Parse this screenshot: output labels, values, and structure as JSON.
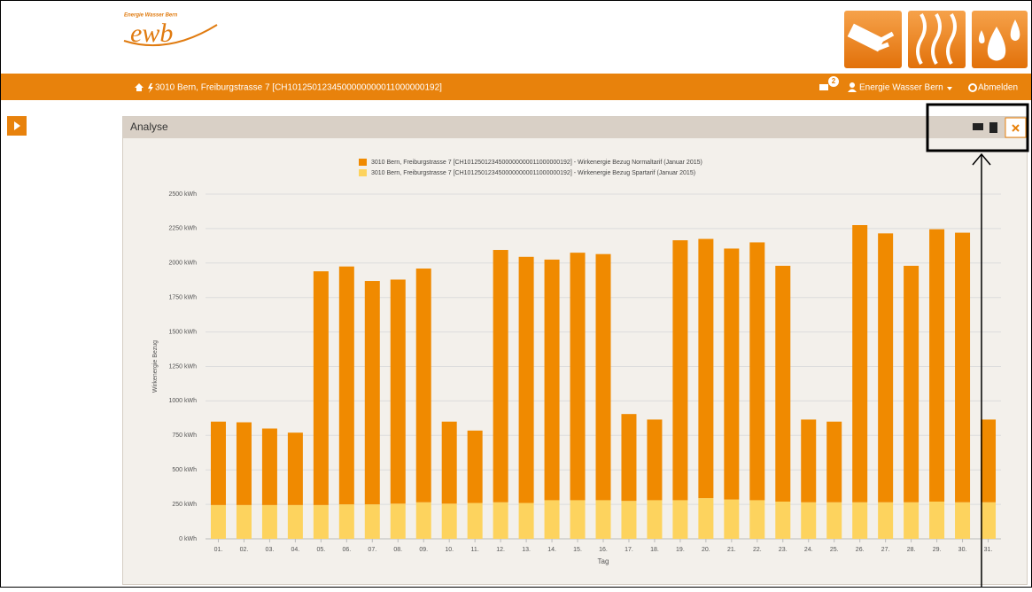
{
  "header": {
    "logo_small": "Energie Wasser Bern",
    "logo": "ewb"
  },
  "nav": {
    "address": "3010 Bern, Freiburgstrasse 7 [CH1012501234500000000011000000192]",
    "badge": "2",
    "user": "Energie Wasser Bern",
    "logout": "Abmelden"
  },
  "panel": {
    "title": "Analyse"
  },
  "chart_data": {
    "type": "stacked_bar",
    "y_label": "Wirkenergie Bezug",
    "x_label": "Tag",
    "categories": [
      "01.",
      "02.",
      "03.",
      "04.",
      "05.",
      "06.",
      "07.",
      "08.",
      "09.",
      "10.",
      "11.",
      "12.",
      "13.",
      "14.",
      "15.",
      "16.",
      "17.",
      "18.",
      "19.",
      "20.",
      "21.",
      "22.",
      "23.",
      "24.",
      "25.",
      "26.",
      "27.",
      "28.",
      "29.",
      "30.",
      "31."
    ],
    "series": [
      {
        "name": "3010 Bern, Freiburgstrasse 7 [CH1012501234500000000011000000192] - Wirkenergie Bezug Normaltarif (Januar 2015)",
        "color": "#f08a00",
        "values": [
          605,
          600,
          555,
          525,
          1695,
          1725,
          1620,
          1625,
          1695,
          595,
          525,
          1830,
          1785,
          1745,
          1795,
          1785,
          630,
          585,
          1885,
          1880,
          1820,
          1870,
          1710,
          600,
          585,
          2010,
          1950,
          1715,
          1975,
          1955,
          600
        ]
      },
      {
        "name": "3010 Bern, Freiburgstrasse 7 [CH1012501234500000000011000000192] - Wirkenergie Bezug Spartarif (Januar 2015)",
        "color": "#fdd35e",
        "values": [
          245,
          245,
          245,
          245,
          245,
          250,
          250,
          255,
          265,
          255,
          260,
          265,
          260,
          280,
          280,
          280,
          275,
          280,
          280,
          295,
          285,
          280,
          270,
          265,
          265,
          265,
          265,
          265,
          270,
          265,
          265
        ]
      }
    ],
    "ylim": [
      0,
      2500
    ],
    "yticks": [
      {
        "value": 0,
        "label": "0 kWh"
      },
      {
        "value": 250,
        "label": "250 kWh"
      },
      {
        "value": 500,
        "label": "500 kWh"
      },
      {
        "value": 750,
        "label": "750 kWh"
      },
      {
        "value": 1000,
        "label": "1000 kWh"
      },
      {
        "value": 1250,
        "label": "1250 kWh"
      },
      {
        "value": 1500,
        "label": "1500 kWh"
      },
      {
        "value": 1750,
        "label": "1750 kWh"
      },
      {
        "value": 2000,
        "label": "2000 kWh"
      },
      {
        "value": 2250,
        "label": "2250 kWh"
      },
      {
        "value": 2500,
        "label": "2500 kWh"
      }
    ],
    "grid": true
  }
}
